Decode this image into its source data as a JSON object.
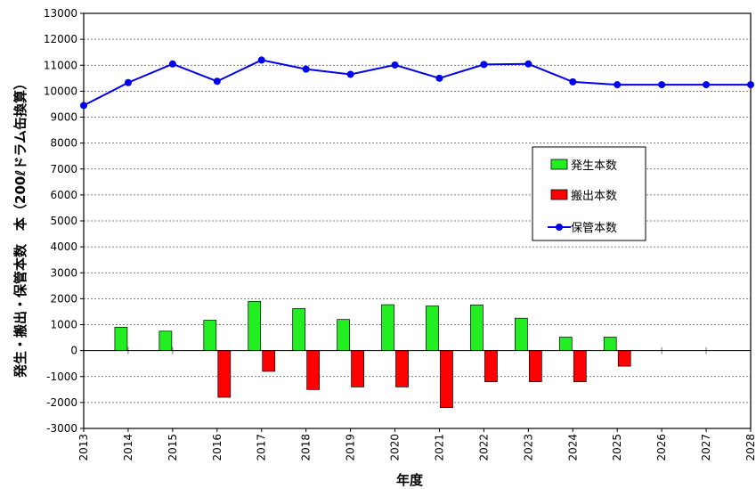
{
  "chart_data": {
    "type": "bar",
    "title": "",
    "xlabel": "年度",
    "ylabel": "発生・搬出・保管本数　本（200ℓドラム缶換算）",
    "ylim": [
      -3000,
      13000
    ],
    "y_ticks": [
      -3000,
      -2000,
      -1000,
      0,
      1000,
      2000,
      3000,
      4000,
      5000,
      6000,
      7000,
      8000,
      9000,
      10000,
      11000,
      12000,
      13000
    ],
    "x": [
      "2013",
      "2014",
      "2015",
      "2016",
      "2017",
      "2018",
      "2019",
      "2020",
      "2021",
      "2022",
      "2023",
      "2024",
      "2025",
      "2026",
      "2027",
      "2028"
    ],
    "grid": true,
    "legend_position": "center-right",
    "series": [
      {
        "name": "発生本数",
        "kind": "bar",
        "color": "#22ee22",
        "values": [
          null,
          900,
          750,
          1170,
          1900,
          1620,
          1200,
          1770,
          1720,
          1760,
          1250,
          520,
          520,
          0,
          0,
          null
        ]
      },
      {
        "name": "搬出本数",
        "kind": "bar",
        "color": "#ff0000",
        "values": [
          null,
          0,
          0,
          -1800,
          -800,
          -1500,
          -1400,
          -1400,
          -2200,
          -1200,
          -1200,
          -1200,
          -600,
          0,
          0,
          null
        ]
      },
      {
        "name": "保管本数",
        "kind": "line",
        "color": "#0000ee",
        "values": [
          9450,
          10330,
          11050,
          10380,
          11200,
          10850,
          10650,
          11010,
          10500,
          11030,
          11050,
          10360,
          10250,
          10250,
          10250,
          10250
        ]
      }
    ]
  }
}
